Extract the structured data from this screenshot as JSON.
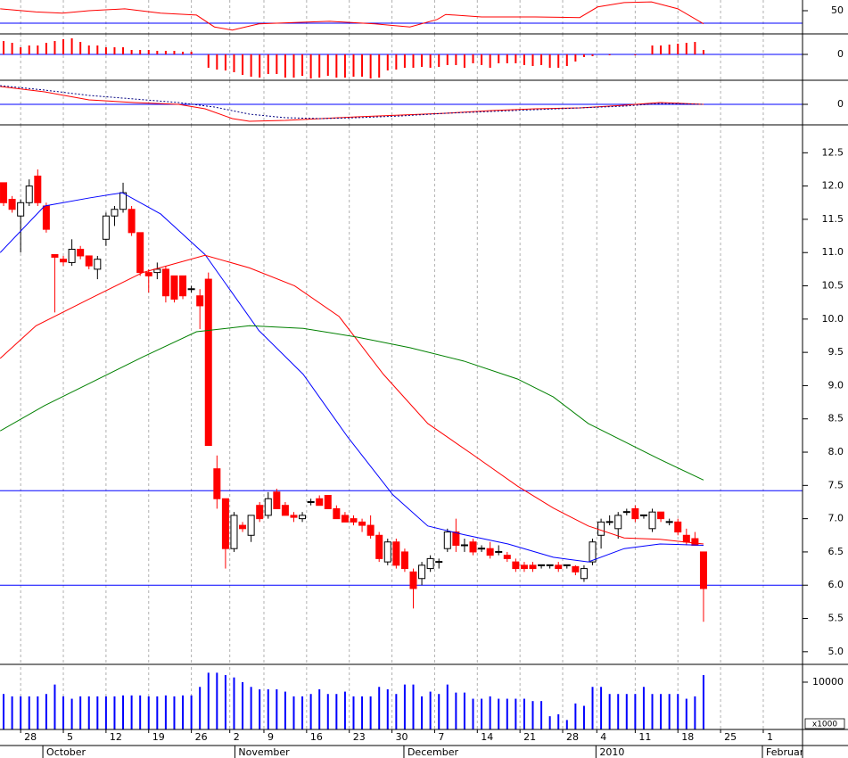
{
  "chart_data": [
    {
      "type": "line",
      "xlim": [
        -0.42,
        93.6
      ],
      "ylim": [
        12.9,
        67.1
      ],
      "yticks": [
        50
      ],
      "levels": [
        30
      ],
      "level_color": "#0000ff",
      "series": [
        {
          "color": "#ff0000",
          "x": [
            -0.4,
            3.8,
            6.9,
            10,
            14.2,
            18.4,
            22.6,
            24.7,
            26.8,
            29.9,
            34.1,
            38.2,
            43.5,
            47.6,
            50.8,
            51.8,
            56,
            62.3,
            67.5,
            69.6,
            72.7,
            75.9,
            79,
            82
          ],
          "values": [
            53,
            48,
            46,
            50,
            53,
            46,
            43,
            24,
            19,
            29,
            31,
            33,
            29,
            24,
            36,
            44,
            40,
            40,
            39,
            56,
            63,
            64,
            53,
            29
          ]
        }
      ]
    },
    {
      "type": "bar",
      "xlim": [
        -0.42,
        93.6
      ],
      "ylim": [
        -29,
        23
      ],
      "yticks": [
        0
      ],
      "levels": [
        0
      ],
      "level_color": "#0000ff",
      "color": "#ff0000",
      "values": [
        15,
        13,
        8,
        10,
        10,
        13,
        15,
        17,
        18,
        14,
        10,
        10,
        8,
        8,
        8,
        5,
        5,
        5,
        4,
        4,
        4,
        3,
        3,
        0,
        -15,
        -17,
        -18,
        -20,
        -23,
        -25,
        -26,
        -22,
        -22,
        -26,
        -26,
        -24,
        -27,
        -26,
        -24,
        -26,
        -26,
        -25,
        -25,
        -27,
        -26,
        -18,
        -17,
        -15,
        -15,
        -14,
        -15,
        -14,
        -12,
        -12,
        -15,
        -10,
        -12,
        -15,
        -10,
        -10,
        -10,
        -12,
        -13,
        -12,
        -15,
        -15,
        -13,
        -8,
        -3,
        -2,
        0,
        -1,
        0,
        0,
        -1,
        0,
        10,
        10,
        11,
        12,
        13,
        14,
        5
      ]
    },
    {
      "type": "line",
      "xlim": [
        -0.42,
        93.6
      ],
      "ylim": [
        -23,
        27
      ],
      "yticks": [
        0
      ],
      "levels": [
        0
      ],
      "level_color": "#0000ff",
      "series": [
        {
          "color": "#ff0000",
          "x": [
            -0.4,
            4.8,
            10,
            15.3,
            20.5,
            23.6,
            26.8,
            28.8,
            33,
            37.2,
            41.4,
            46.6,
            51.8,
            57.1,
            62.3,
            67.5,
            72.7,
            76.9,
            82
          ],
          "values": [
            20,
            14,
            5,
            2,
            0,
            -5,
            -16,
            -19,
            -18,
            -16,
            -14,
            -12,
            -10,
            -7,
            -5,
            -4,
            -1,
            2,
            0
          ]
        },
        {
          "color": "#000080",
          "dashed": true,
          "x": [
            -0.4,
            4.8,
            10,
            15.3,
            20.5,
            24.7,
            28.8,
            33,
            37.2,
            41.4,
            46.6,
            51.8,
            57.1,
            62.3,
            67.5,
            72.7,
            76.9,
            82
          ],
          "values": [
            21,
            16,
            10,
            6,
            2,
            -3,
            -11,
            -15,
            -16,
            -15,
            -13,
            -10,
            -8,
            -6,
            -4,
            -2,
            1,
            0
          ]
        }
      ]
    },
    {
      "type": "candlestick",
      "xlim": [
        -0.42,
        93.6
      ],
      "ylim": [
        4.81,
        12.92
      ],
      "yticks": [
        {
          "value": 5,
          "label": "5.0"
        },
        5.5,
        {
          "value": 6,
          "label": "6.0"
        },
        6.5,
        {
          "value": 7,
          "label": "7.0"
        },
        7.5,
        {
          "value": 8,
          "label": "8.0"
        },
        8.5,
        {
          "value": 9,
          "label": "9.0"
        },
        9.5,
        {
          "value": 10,
          "label": "10.0"
        },
        10.5,
        {
          "value": 11,
          "label": "11.0"
        },
        11.5,
        {
          "value": 12,
          "label": "12.0"
        },
        12.5
      ],
      "up_color": "#ffffff",
      "down_color": "#ff0000",
      "levels": [
        7.42,
        6.0
      ],
      "level_color": "#0000ff",
      "open": [
        12.05,
        11.8,
        11.55,
        11.75,
        12.15,
        11.7,
        10.97,
        10.9,
        10.85,
        11.05,
        10.95,
        10.75,
        11.2,
        11.55,
        11.65,
        11.65,
        11.3,
        10.7,
        10.7,
        10.75,
        10.65,
        10.65,
        10.45,
        10.35,
        10.6,
        7.75,
        7.3,
        6.55,
        6.9,
        6.75,
        7.2,
        7.05,
        7.4,
        7.2,
        7.05,
        7.0,
        7.25,
        7.3,
        7.35,
        7.15,
        7.05,
        7.0,
        6.95,
        6.9,
        6.75,
        6.35,
        6.65,
        6.5,
        6.2,
        6.1,
        6.25,
        6.35,
        6.55,
        6.8,
        6.6,
        6.65,
        6.55,
        6.55,
        6.5,
        6.45,
        6.35,
        6.3,
        6.3,
        6.3,
        6.3,
        6.3,
        6.3,
        6.28,
        6.1,
        6.35,
        6.75,
        6.95,
        6.85,
        7.1,
        7.15,
        7.05,
        6.85,
        7.1,
        6.95,
        6.95,
        6.75,
        6.7,
        6.5
      ],
      "high": [
        12.05,
        11.85,
        11.8,
        12.1,
        12.25,
        11.75,
        10.97,
        10.95,
        11.2,
        11.1,
        10.95,
        10.95,
        11.6,
        11.7,
        12.05,
        11.7,
        11.3,
        10.75,
        10.85,
        10.8,
        10.65,
        10.65,
        10.5,
        10.45,
        10.7,
        7.95,
        7.3,
        7.1,
        6.95,
        7.05,
        7.25,
        7.4,
        7.45,
        7.25,
        7.1,
        7.1,
        7.3,
        7.35,
        7.35,
        7.2,
        7.1,
        7.05,
        7.0,
        7.05,
        6.8,
        6.7,
        6.7,
        6.55,
        6.25,
        6.35,
        6.45,
        6.4,
        6.85,
        7.0,
        6.7,
        6.7,
        6.6,
        6.65,
        6.6,
        6.5,
        6.4,
        6.35,
        6.35,
        6.3,
        6.3,
        6.35,
        6.3,
        6.3,
        6.3,
        6.7,
        7.0,
        7.05,
        7.1,
        7.15,
        7.2,
        7.05,
        7.15,
        7.1,
        7.0,
        7.0,
        6.85,
        6.8,
        6.5
      ],
      "low": [
        11.7,
        11.6,
        11.0,
        11.7,
        11.7,
        11.3,
        10.1,
        10.8,
        10.8,
        10.9,
        10.75,
        10.6,
        11.1,
        11.4,
        11.6,
        11.25,
        10.65,
        10.4,
        10.6,
        10.25,
        10.25,
        10.3,
        10.4,
        9.85,
        8.1,
        7.15,
        6.25,
        6.5,
        6.8,
        6.65,
        6.95,
        7.0,
        7.15,
        7.05,
        6.95,
        6.95,
        7.2,
        7.2,
        7.15,
        7.0,
        6.95,
        6.9,
        6.8,
        6.7,
        6.35,
        6.3,
        6.25,
        6.2,
        5.65,
        6.0,
        6.2,
        6.25,
        6.5,
        6.5,
        6.5,
        6.45,
        6.5,
        6.4,
        6.45,
        6.35,
        6.2,
        6.2,
        6.2,
        6.25,
        6.25,
        6.2,
        6.25,
        6.15,
        6.05,
        6.3,
        6.55,
        6.9,
        6.7,
        7.05,
        6.95,
        7.0,
        6.8,
        6.95,
        6.9,
        6.75,
        6.6,
        6.6,
        5.45
      ],
      "close": [
        11.75,
        11.65,
        11.75,
        12.0,
        11.75,
        11.35,
        10.93,
        10.86,
        11.05,
        10.95,
        10.8,
        10.9,
        11.55,
        11.65,
        11.9,
        11.3,
        10.7,
        10.65,
        10.75,
        10.35,
        10.3,
        10.35,
        10.45,
        10.2,
        8.1,
        7.3,
        6.55,
        7.05,
        6.85,
        7.05,
        7.0,
        7.3,
        7.15,
        7.05,
        7.02,
        7.05,
        7.25,
        7.2,
        7.15,
        7.0,
        6.95,
        6.95,
        6.9,
        6.75,
        6.4,
        6.65,
        6.3,
        6.25,
        5.95,
        6.3,
        6.4,
        6.35,
        6.8,
        6.6,
        6.6,
        6.5,
        6.55,
        6.45,
        6.5,
        6.4,
        6.25,
        6.25,
        6.25,
        6.3,
        6.3,
        6.25,
        6.3,
        6.2,
        6.25,
        6.65,
        6.95,
        6.95,
        7.05,
        7.1,
        7.0,
        7.05,
        7.1,
        7.0,
        6.95,
        6.8,
        6.65,
        6.6,
        5.95
      ],
      "series": [
        {
          "color": "#0000ff",
          "x": [
            -0.4,
            4.8,
            10,
            13.9,
            18.4,
            23.6,
            29.9,
            35.1,
            40.3,
            45.6,
            49.7,
            53.9,
            59.1,
            64.4,
            68.5,
            72.7,
            76.9,
            82
          ],
          "values": [
            11.0,
            11.7,
            11.82,
            11.9,
            11.58,
            10.97,
            9.83,
            9.17,
            8.23,
            7.36,
            6.89,
            6.76,
            6.62,
            6.42,
            6.35,
            6.55,
            6.62,
            6.6
          ]
        },
        {
          "color": "#ff0000",
          "x": [
            -0.4,
            3.8,
            10,
            16.3,
            23.6,
            28.8,
            34.1,
            39.3,
            44.5,
            49.7,
            55,
            60.2,
            64.4,
            68.5,
            72.7,
            76.9,
            82
          ],
          "values": [
            9.41,
            9.9,
            10.3,
            10.7,
            10.96,
            10.77,
            10.5,
            10.04,
            9.17,
            8.43,
            7.96,
            7.49,
            7.16,
            6.89,
            6.71,
            6.69,
            6.62
          ]
        },
        {
          "color": "#008000",
          "x": [
            -0.4,
            4.8,
            10,
            16.3,
            22.6,
            28.8,
            35.1,
            41.4,
            47.6,
            53.9,
            60.2,
            64.4,
            68.5,
            72.7,
            76.9,
            82
          ],
          "values": [
            8.32,
            8.7,
            9.03,
            9.43,
            9.81,
            9.9,
            9.86,
            9.73,
            9.57,
            9.37,
            9.1,
            8.83,
            8.43,
            8.16,
            7.89,
            7.58
          ]
        }
      ]
    },
    {
      "type": "bar",
      "xlim": [
        -0.42,
        93.6
      ],
      "ylim": [
        0,
        13200
      ],
      "yticks": [
        10000
      ],
      "color": "#0000ff",
      "unit_label": "x1000",
      "values": [
        7500,
        7000,
        7000,
        7000,
        7000,
        7500,
        9500,
        7000,
        6500,
        7000,
        7000,
        7000,
        7000,
        7000,
        7200,
        7200,
        7200,
        7000,
        7000,
        7200,
        7000,
        7200,
        7200,
        9000,
        12000,
        12000,
        11500,
        11000,
        10000,
        9000,
        8500,
        8500,
        8500,
        8000,
        7000,
        7000,
        7500,
        8500,
        7500,
        7500,
        8000,
        7000,
        7000,
        7000,
        9000,
        8500,
        7500,
        9500,
        9500,
        7000,
        8000,
        7500,
        9500,
        7800,
        7800,
        6500,
        6500,
        7000,
        6500,
        6500,
        6500,
        6500,
        6000,
        6000,
        2800,
        3200,
        2000,
        5500,
        5000,
        9000,
        9000,
        7500,
        7500,
        7500,
        7500,
        9000,
        7500,
        7500,
        7500,
        7500,
        6500,
        7000,
        11500
      ],
      "xticks": [
        {
          "value": 2,
          "label": "28"
        },
        {
          "value": 7,
          "label": "5"
        },
        {
          "value": 12,
          "label": "12"
        },
        {
          "value": 17,
          "label": "19"
        },
        {
          "value": 22,
          "label": "26"
        },
        {
          "value": 26.5,
          "label": "2"
        },
        {
          "value": 30.5,
          "label": "9"
        },
        {
          "value": 35.5,
          "label": "16"
        },
        {
          "value": 40.5,
          "label": "23"
        },
        {
          "value": 45.5,
          "label": "30"
        },
        {
          "value": 50.5,
          "label": "7"
        },
        {
          "value": 55.5,
          "label": "14"
        },
        {
          "value": 60.5,
          "label": "21"
        },
        {
          "value": 65.5,
          "label": "28"
        },
        {
          "value": 69.5,
          "label": "4"
        },
        {
          "value": 74,
          "label": "11"
        },
        {
          "value": 79,
          "label": "18"
        },
        {
          "value": 84,
          "label": "25"
        },
        {
          "value": 89,
          "label": "1"
        }
      ],
      "months": [
        {
          "value": 4.6,
          "label": "October"
        },
        {
          "value": 27.1,
          "label": "November"
        },
        {
          "value": 46.9,
          "label": "December"
        },
        {
          "value": 69.4,
          "label": "2010"
        },
        {
          "value": 88.9,
          "label": "Februar"
        }
      ]
    }
  ]
}
